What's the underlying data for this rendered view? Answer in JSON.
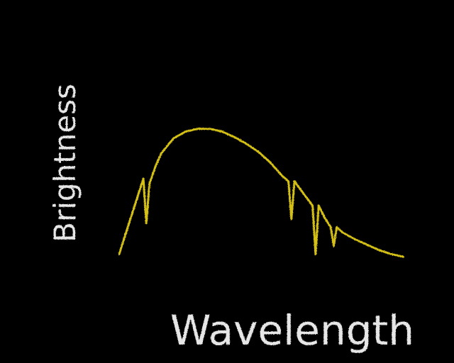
{
  "chart_data": {
    "type": "line",
    "title": "",
    "xlabel": "Wavelength",
    "ylabel": "Brightness",
    "ticks": "none",
    "grid": false,
    "xlim": [
      0,
      100
    ],
    "ylim": [
      0,
      100
    ],
    "series": [
      {
        "color": "#d4c012",
        "x": [
          0,
          4,
          8,
          9,
          10,
          12,
          14,
          18,
          22,
          26,
          30,
          34,
          38,
          42,
          46,
          50,
          54,
          56,
          57,
          58,
          60,
          62,
          64,
          65,
          66,
          68,
          70,
          71,
          72,
          74,
          78,
          82,
          86,
          90,
          94
        ],
        "y": [
          4,
          32,
          60,
          27,
          56,
          69,
          79,
          90,
          95,
          97,
          97,
          95,
          91,
          86,
          80,
          72,
          62,
          58,
          30,
          58,
          52,
          46,
          40,
          4,
          40,
          31,
          24,
          10,
          24,
          20,
          15,
          11,
          7,
          4,
          2
        ]
      }
    ]
  },
  "colors": {
    "background": "#000000",
    "axis": "#e6e6e6",
    "text": "#e6e6e6",
    "curve": "#d4c012"
  }
}
